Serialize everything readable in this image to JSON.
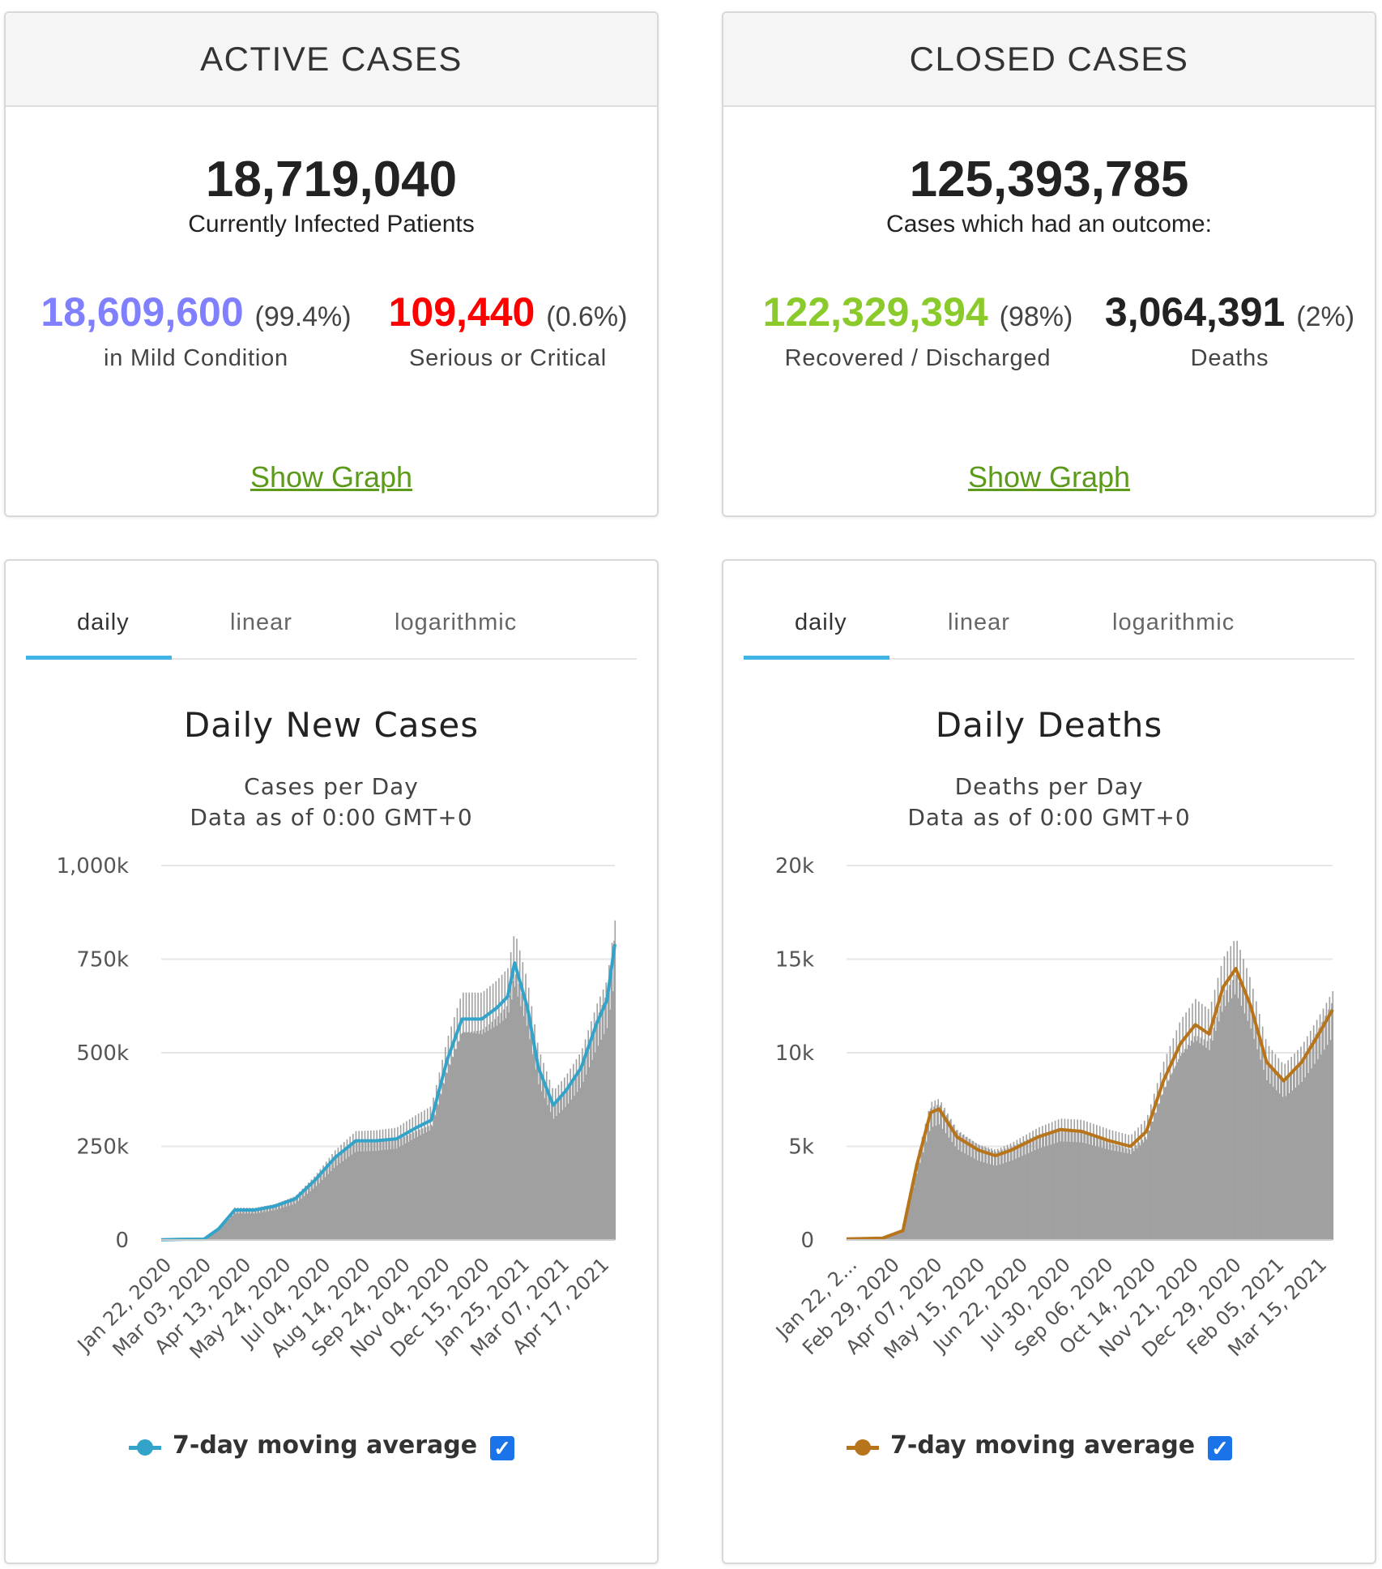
{
  "active": {
    "header": "ACTIVE CASES",
    "total": "18,719,040",
    "caption": "Currently Infected Patients",
    "mild_value": "18,609,600",
    "mild_pct": "(99.4%)",
    "mild_label": "in Mild Condition",
    "critical_value": "109,440",
    "critical_pct": "(0.6%)",
    "critical_label": "Serious or Critical",
    "link": "Show Graph"
  },
  "closed": {
    "header": "CLOSED CASES",
    "total": "125,393,785",
    "caption": "Cases which had an outcome:",
    "recovered_value": "122,329,394",
    "recovered_pct": "(98%)",
    "recovered_label": "Recovered / Discharged",
    "deaths_value": "3,064,391",
    "deaths_pct": "(2%)",
    "deaths_label": "Deaths",
    "link": "Show Graph"
  },
  "tabs": [
    "daily",
    "linear",
    "logarithmic"
  ],
  "colors": {
    "mild": "#8080ff",
    "critical": "#ff0000",
    "recovered": "#8ACA2B",
    "link": "#5c9a1a",
    "bars": "#a0a0a0",
    "cases_line": "#33a3c9",
    "deaths_line": "#b8741a",
    "tab_accent": "#40b4e5"
  },
  "chart_data": [
    {
      "type": "bar",
      "title": "Daily New Cases",
      "subtitle": [
        "Cases per Day",
        "Data as of 0:00 GMT+0"
      ],
      "y_ticks": [
        "1,000k",
        "750k",
        "500k",
        "250k",
        "0"
      ],
      "ylim": [
        0,
        1000000
      ],
      "x_ticks": [
        "Jan 22, 2020",
        "Mar 03, 2020",
        "Apr 13, 2020",
        "May 24, 2020",
        "Jul 04, 2020",
        "Aug 14, 2020",
        "Sep 24, 2020",
        "Nov 04, 2020",
        "Dec 15, 2020",
        "Jan 25, 2021",
        "Mar 07, 2021",
        "Apr 17, 2021"
      ],
      "x_range": [
        "Jan 22, 2020",
        "Apr 23, 2021"
      ],
      "series": [
        {
          "name": "7-day moving average",
          "points": [
            [
              "Jan 22, 2020",
              500
            ],
            [
              "Feb 15, 2020",
              2000
            ],
            [
              "Mar 05, 2020",
              2000
            ],
            [
              "Mar 20, 2020",
              30000
            ],
            [
              "Apr 05, 2020",
              80000
            ],
            [
              "Apr 25, 2020",
              80000
            ],
            [
              "May 15, 2020",
              90000
            ],
            [
              "Jun 05, 2020",
              110000
            ],
            [
              "Jun 25, 2020",
              160000
            ],
            [
              "Jul 15, 2020",
              220000
            ],
            [
              "Aug 05, 2020",
              265000
            ],
            [
              "Aug 25, 2020",
              265000
            ],
            [
              "Sep 15, 2020",
              270000
            ],
            [
              "Oct 05, 2020",
              300000
            ],
            [
              "Oct 20, 2020",
              320000
            ],
            [
              "Nov 05, 2020",
              480000
            ],
            [
              "Nov 20, 2020",
              590000
            ],
            [
              "Dec 10, 2020",
              590000
            ],
            [
              "Dec 25, 2020",
              620000
            ],
            [
              "Jan 05, 2021",
              650000
            ],
            [
              "Jan 12, 2021",
              740000
            ],
            [
              "Jan 25, 2021",
              620000
            ],
            [
              "Feb 05, 2021",
              460000
            ],
            [
              "Feb 20, 2021",
              360000
            ],
            [
              "Mar 05, 2021",
              400000
            ],
            [
              "Mar 20, 2021",
              460000
            ],
            [
              "Apr 05, 2021",
              580000
            ],
            [
              "Apr 15, 2021",
              640000
            ],
            [
              "Apr 23, 2021",
              790000
            ]
          ]
        }
      ],
      "legend": "7-day moving average"
    },
    {
      "type": "bar",
      "title": "Daily Deaths",
      "subtitle": [
        "Deaths per Day",
        "Data as of 0:00 GMT+0"
      ],
      "y_ticks": [
        "20k",
        "15k",
        "10k",
        "5k",
        "0"
      ],
      "ylim": [
        0,
        20000
      ],
      "x_ticks": [
        "Jan 22, 2...",
        "Feb 29, 2020",
        "Apr 07, 2020",
        "May 15, 2020",
        "Jun 22, 2020",
        "Jul 30, 2020",
        "Sep 06, 2020",
        "Oct 14, 2020",
        "Nov 21, 2020",
        "Dec 29, 2020",
        "Feb 05, 2021",
        "Mar 15, 2021"
      ],
      "x_range": [
        "Jan 22, 2020",
        "Apr 23, 2021"
      ],
      "series": [
        {
          "name": "7-day moving average",
          "points": [
            [
              "Jan 22, 2020",
              50
            ],
            [
              "Feb 25, 2020",
              100
            ],
            [
              "Mar 15, 2020",
              500
            ],
            [
              "Mar 28, 2020",
              4000
            ],
            [
              "Apr 10, 2020",
              6800
            ],
            [
              "Apr 18, 2020",
              7000
            ],
            [
              "May 05, 2020",
              5500
            ],
            [
              "May 25, 2020",
              4800
            ],
            [
              "Jun 10, 2020",
              4500
            ],
            [
              "Jun 25, 2020",
              4800
            ],
            [
              "Jul 20, 2020",
              5500
            ],
            [
              "Aug 10, 2020",
              5900
            ],
            [
              "Aug 30, 2020",
              5800
            ],
            [
              "Sep 25, 2020",
              5300
            ],
            [
              "Oct 15, 2020",
              5000
            ],
            [
              "Oct 30, 2020",
              5800
            ],
            [
              "Nov 15, 2020",
              8500
            ],
            [
              "Dec 01, 2020",
              10500
            ],
            [
              "Dec 15, 2020",
              11500
            ],
            [
              "Dec 28, 2020",
              11000
            ],
            [
              "Jan 10, 2021",
              13500
            ],
            [
              "Jan 22, 2021",
              14500
            ],
            [
              "Feb 05, 2021",
              12500
            ],
            [
              "Feb 20, 2021",
              9500
            ],
            [
              "Mar 08, 2021",
              8500
            ],
            [
              "Mar 25, 2021",
              9500
            ],
            [
              "Apr 10, 2021",
              11000
            ],
            [
              "Apr 23, 2021",
              12300
            ]
          ]
        }
      ],
      "legend": "7-day moving average"
    }
  ]
}
